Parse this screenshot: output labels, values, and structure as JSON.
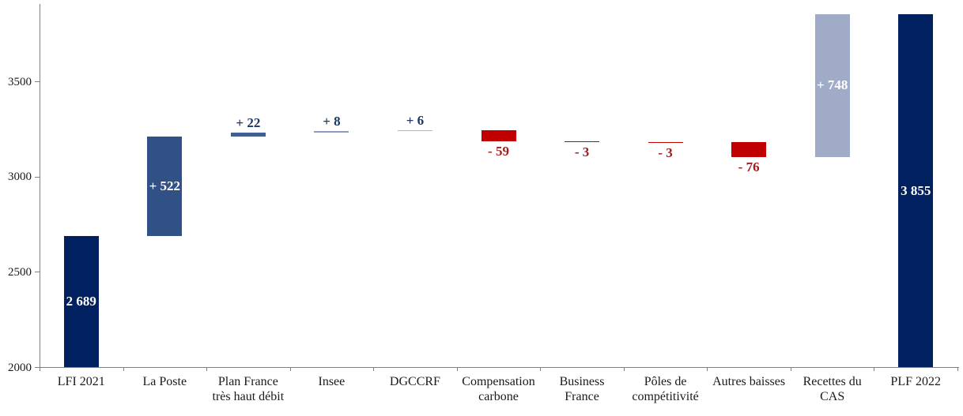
{
  "chart_data": {
    "type": "bar",
    "subtype": "waterfall",
    "title": "",
    "xlabel": "",
    "ylabel": "",
    "legend": "none",
    "grid": "off",
    "y_axis": {
      "min": 2000,
      "max": 3900,
      "tick_values": [
        2000,
        2500,
        3000,
        3500
      ],
      "tick_labels": [
        "2000",
        "2500",
        "3000",
        "3500"
      ]
    },
    "categories": [
      "LFI 2021",
      "La Poste",
      "Plan France\ntrès haut débit",
      "Insee",
      "DGCCRF",
      "Compensation\ncarbone",
      "Business\nFrance",
      "Pôles de\ncompétitivité",
      "Autres baisses",
      "Recettes du\nCAS",
      "PLF 2022"
    ],
    "bars": [
      {
        "id": "lfi-2021",
        "label": "LFI 2021",
        "from": 2000,
        "to": 2689,
        "delta": 2689,
        "value_label": "2 689",
        "label_pos": "inside",
        "color": "#002060",
        "label_color": "#ffffff"
      },
      {
        "id": "la-poste",
        "label": "La Poste",
        "from": 2689,
        "to": 3211,
        "delta": 522,
        "value_label": "+ 522",
        "label_pos": "inside",
        "color": "#305086",
        "label_color": "#ffffff"
      },
      {
        "id": "plan-france-thd",
        "label": "Plan France très haut débit",
        "from": 3211,
        "to": 3233,
        "delta": 22,
        "value_label": "+ 22",
        "label_pos": "above",
        "color": "#40608F",
        "label_color": "#1F3864"
      },
      {
        "id": "insee",
        "label": "Insee",
        "from": 3233,
        "to": 3241,
        "delta": 8,
        "value_label": "+ 8",
        "label_pos": "above",
        "color": "#8A9CC2",
        "label_color": "#1F3864"
      },
      {
        "id": "dgccrf",
        "label": "DGCCRF",
        "from": 3241,
        "to": 3247,
        "delta": 6,
        "value_label": "+ 6",
        "label_pos": "above",
        "color": "#A8B4D0",
        "label_color": "#1F3864"
      },
      {
        "id": "compensation-carbone",
        "label": "Compensation carbone",
        "from": 3247,
        "to": 3188,
        "delta": -59,
        "value_label": "- 59",
        "label_pos": "below",
        "color": "#C00000",
        "label_color": "#A11C1C"
      },
      {
        "id": "business-france",
        "label": "Business France",
        "from": 3188,
        "to": 3185,
        "delta": -3,
        "value_label": "- 3",
        "label_pos": "below",
        "color": "#C00000",
        "label_color": "#A11C1C"
      },
      {
        "id": "poles-de-competitivite",
        "label": "Pôles de compétitivité",
        "from": 3185,
        "to": 3182,
        "delta": -3,
        "value_label": "- 3",
        "label_pos": "below",
        "color": "#C00000",
        "label_color": "#A11C1C"
      },
      {
        "id": "autres-baisses",
        "label": "Autres baisses",
        "from": 3182,
        "to": 3106,
        "delta": -76,
        "value_label": "- 76",
        "label_pos": "below",
        "color": "#C00000",
        "label_color": "#A11C1C"
      },
      {
        "id": "recettes-du-cas",
        "label": "Recettes du CAS",
        "from": 3106,
        "to": 3854,
        "delta": 748,
        "value_label": "+ 748",
        "label_pos": "inside",
        "color": "#9FABC7",
        "label_color": "#ffffff"
      },
      {
        "id": "plf-2022",
        "label": "PLF 2022",
        "from": 2000,
        "to": 3855,
        "delta": 3855,
        "value_label": "3 855",
        "label_pos": "inside",
        "color": "#002060",
        "label_color": "#ffffff"
      }
    ],
    "colors": {
      "total_bar": "#002060",
      "increase_large": "#305086",
      "increase_small": "#8A9CC2",
      "decrease": "#C00000",
      "cas_block": "#9FABC7",
      "positive_label_text": "#1F3864",
      "negative_label_text": "#A11C1C",
      "axis": "#808080"
    }
  }
}
